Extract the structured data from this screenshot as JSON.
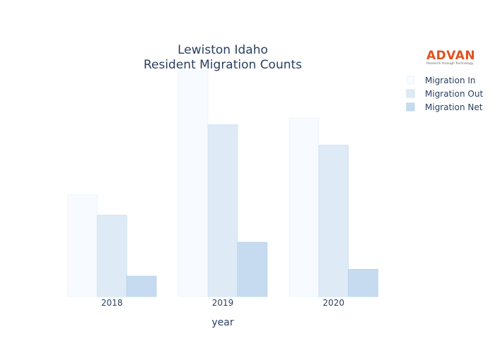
{
  "logo": {
    "text": "ADVAN",
    "tagline": "Research through Technology",
    "color": "#e0531f"
  },
  "chart_data": {
    "type": "bar",
    "title_lines": [
      "Lewiston Idaho",
      "Resident Migration Counts"
    ],
    "xlabel": "year",
    "ylabel": "",
    "categories": [
      "2018",
      "2019",
      "2020"
    ],
    "ylim": [
      0,
      1000
    ],
    "grid": false,
    "legend_position": "top-right",
    "series": [
      {
        "name": "Migration In",
        "values": [
          450,
          1000,
          790
        ],
        "color": "#f7fbff",
        "stroke": "#eef4fb"
      },
      {
        "name": "Migration Out",
        "values": [
          360,
          760,
          670
        ],
        "color": "#deebf7",
        "stroke": "#d3e3f3"
      },
      {
        "name": "Migration Net",
        "values": [
          90,
          240,
          120
        ],
        "color": "#c6dbef",
        "stroke": "#bcd4ea"
      }
    ]
  }
}
